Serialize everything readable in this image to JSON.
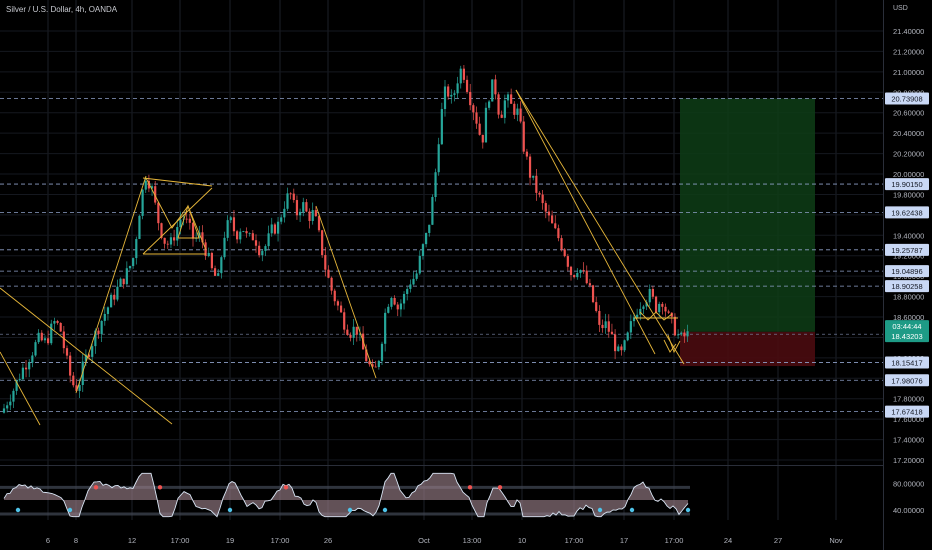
{
  "header": {
    "title": "Silver / U.S. Dollar, 4h, OANDA",
    "currency": "USD"
  },
  "chart_data": {
    "type": "candlestick",
    "instrument": "Silver / U.S. Dollar",
    "timeframe": "4h",
    "source": "OANDA",
    "ylim": [
      17.15,
      21.55
    ],
    "y_ticks": [
      "21.40000",
      "21.20000",
      "21.00000",
      "20.80000",
      "20.60000",
      "20.40000",
      "20.20000",
      "20.00000",
      "19.80000",
      "19.60000",
      "19.40000",
      "19.20000",
      "19.00000",
      "18.80000",
      "18.60000",
      "18.40000",
      "18.20000",
      "18.00000",
      "17.80000",
      "17.60000",
      "17.40000",
      "17.20000"
    ],
    "x_ticks": [
      "6",
      "8",
      "12",
      "17:00",
      "19",
      "17:00",
      "26",
      "Oct",
      "13:00",
      "10",
      "17:00",
      "17",
      "17:00",
      "24",
      "27",
      "Nov"
    ],
    "horizontal_levels": [
      20.73908,
      19.9015,
      19.62438,
      19.25787,
      19.04896,
      18.90258,
      18.15417,
      17.98076,
      17.67418
    ],
    "level_labels": [
      "20.73908",
      "19.90150",
      "19.62438",
      "19.25787",
      "19.04896",
      "18.90258",
      "18.15417",
      "17.98076",
      "17.67418"
    ],
    "current_price": {
      "label": "18.43203",
      "countdown": "03:44:44",
      "value": 18.43203
    },
    "position_tool": {
      "entry": 18.455,
      "target": 20.739,
      "stop": 18.12
    },
    "price_path": [
      [
        0,
        17.62
      ],
      [
        6,
        17.75
      ],
      [
        14,
        17.9
      ],
      [
        22,
        18.08
      ],
      [
        30,
        18.22
      ],
      [
        38,
        18.38
      ],
      [
        46,
        18.35
      ],
      [
        54,
        18.55
      ],
      [
        60,
        18.5
      ],
      [
        66,
        18.2
      ],
      [
        72,
        17.95
      ],
      [
        78,
        17.9
      ],
      [
        84,
        18.15
      ],
      [
        90,
        18.3
      ],
      [
        96,
        18.45
      ],
      [
        104,
        18.62
      ],
      [
        112,
        18.78
      ],
      [
        120,
        18.92
      ],
      [
        128,
        19.05
      ],
      [
        134,
        19.2
      ],
      [
        138,
        19.55
      ],
      [
        142,
        19.8
      ],
      [
        146,
        20.0
      ],
      [
        152,
        19.85
      ],
      [
        158,
        19.55
      ],
      [
        164,
        19.35
      ],
      [
        170,
        19.3
      ],
      [
        176,
        19.45
      ],
      [
        182,
        19.6
      ],
      [
        188,
        19.5
      ],
      [
        194,
        19.35
      ],
      [
        200,
        19.4
      ],
      [
        206,
        19.25
      ],
      [
        212,
        19.05
      ],
      [
        218,
        18.95
      ],
      [
        224,
        19.4
      ],
      [
        230,
        19.55
      ],
      [
        236,
        19.4
      ],
      [
        242,
        19.5
      ],
      [
        248,
        19.35
      ],
      [
        254,
        19.4
      ],
      [
        260,
        19.25
      ],
      [
        266,
        19.3
      ],
      [
        272,
        19.45
      ],
      [
        278,
        19.5
      ],
      [
        284,
        19.7
      ],
      [
        290,
        19.82
      ],
      [
        296,
        19.6
      ],
      [
        302,
        19.72
      ],
      [
        308,
        19.58
      ],
      [
        314,
        19.62
      ],
      [
        320,
        19.35
      ],
      [
        326,
        19.05
      ],
      [
        332,
        18.85
      ],
      [
        338,
        18.7
      ],
      [
        344,
        18.55
      ],
      [
        350,
        18.45
      ],
      [
        356,
        18.5
      ],
      [
        362,
        18.3
      ],
      [
        368,
        18.15
      ],
      [
        374,
        18.02
      ],
      [
        380,
        18.25
      ],
      [
        386,
        18.7
      ],
      [
        392,
        18.85
      ],
      [
        398,
        18.68
      ],
      [
        404,
        18.8
      ],
      [
        410,
        18.95
      ],
      [
        416,
        19.0
      ],
      [
        422,
        19.25
      ],
      [
        428,
        19.45
      ],
      [
        434,
        19.85
      ],
      [
        440,
        20.5
      ],
      [
        446,
        20.85
      ],
      [
        452,
        20.7
      ],
      [
        458,
        20.95
      ],
      [
        462,
        21.05
      ],
      [
        466,
        20.9
      ],
      [
        470,
        20.75
      ],
      [
        476,
        20.55
      ],
      [
        482,
        20.3
      ],
      [
        488,
        20.75
      ],
      [
        494,
        20.9
      ],
      [
        500,
        20.55
      ],
      [
        506,
        20.75
      ],
      [
        512,
        20.65
      ],
      [
        518,
        20.6
      ],
      [
        524,
        20.25
      ],
      [
        530,
        20.0
      ],
      [
        536,
        19.85
      ],
      [
        542,
        19.7
      ],
      [
        548,
        19.58
      ],
      [
        554,
        19.45
      ],
      [
        560,
        19.35
      ],
      [
        566,
        19.2
      ],
      [
        572,
        19.0
      ],
      [
        578,
        19.1
      ],
      [
        584,
        19.0
      ],
      [
        590,
        18.85
      ],
      [
        596,
        18.65
      ],
      [
        600,
        18.45
      ],
      [
        604,
        18.55
      ],
      [
        610,
        18.45
      ],
      [
        616,
        18.3
      ],
      [
        620,
        18.2
      ],
      [
        626,
        18.35
      ],
      [
        632,
        18.55
      ],
      [
        638,
        18.7
      ],
      [
        644,
        18.78
      ],
      [
        650,
        18.82
      ],
      [
        656,
        18.7
      ],
      [
        662,
        18.78
      ],
      [
        668,
        18.6
      ],
      [
        674,
        18.5
      ],
      [
        680,
        18.38
      ],
      [
        686,
        18.42
      ],
      [
        690,
        18.43
      ]
    ]
  },
  "oscillator": {
    "ticks": [
      "80.00000",
      "40.00000"
    ],
    "ylim": [
      25,
      100
    ],
    "upper_band": 74,
    "lower_band": 34
  }
}
